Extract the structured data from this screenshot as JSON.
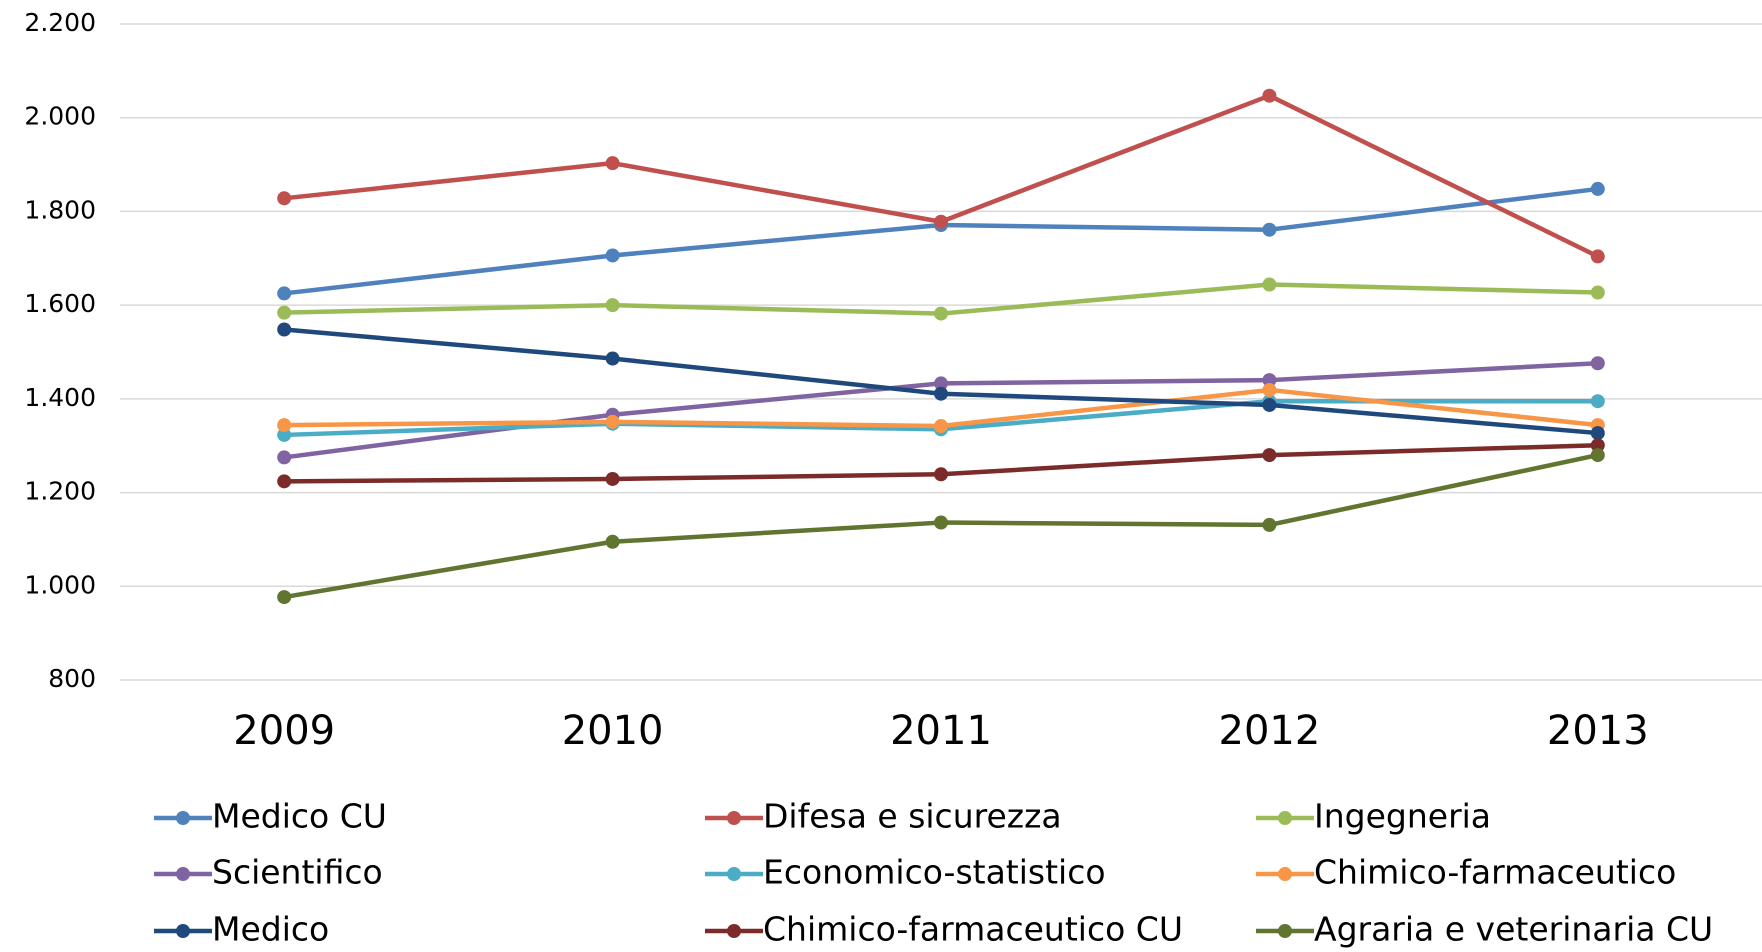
{
  "chart_data": {
    "type": "line",
    "categories": [
      "2009",
      "2010",
      "2011",
      "2012",
      "2013"
    ],
    "series": [
      {
        "name": "Medico CU",
        "color": "#4f81bd",
        "values": [
          1625,
          1706,
          1771,
          1761,
          1848
        ]
      },
      {
        "name": "Difesa e sicurezza",
        "color": "#c0504d",
        "values": [
          1828,
          1903,
          1778,
          2047,
          1704
        ]
      },
      {
        "name": "Ingegneria",
        "color": "#9bbb59",
        "values": [
          1584,
          1600,
          1582,
          1644,
          1627
        ]
      },
      {
        "name": "Scientifico",
        "color": "#8064a2",
        "values": [
          1275,
          1366,
          1433,
          1440,
          1476
        ]
      },
      {
        "name": "Economico-statistico",
        "color": "#4bacc6",
        "values": [
          1323,
          1347,
          1335,
          1395,
          1395
        ]
      },
      {
        "name": "Chimico-farmaceutico",
        "color": "#f79646",
        "values": [
          1344,
          1351,
          1342,
          1419,
          1344
        ]
      },
      {
        "name": "Medico",
        "color": "#1f497d",
        "values": [
          1548,
          1486,
          1411,
          1387,
          1327
        ]
      },
      {
        "name": "Chimico-farmaceutico CU",
        "color": "#7b2c2a",
        "values": [
          1224,
          1229,
          1239,
          1280,
          1301
        ]
      },
      {
        "name": "Agraria e veterinaria CU",
        "color": "#5f7530",
        "values": [
          977,
          1095,
          1136,
          1131,
          1280
        ]
      }
    ],
    "ylim": [
      800,
      2200
    ],
    "yticks": [
      800,
      {
        "value": 1000,
        "label": "1.000"
      },
      {
        "value": 1200,
        "label": "1.200"
      },
      {
        "value": 1400,
        "label": "1.400"
      },
      {
        "value": 1600,
        "label": "1.600"
      },
      {
        "value": 1800,
        "label": "1.800"
      },
      {
        "value": 2000,
        "label": "2.000"
      },
      {
        "value": 2200,
        "label": "2.200"
      }
    ],
    "grid": true,
    "legend": "bottom"
  }
}
